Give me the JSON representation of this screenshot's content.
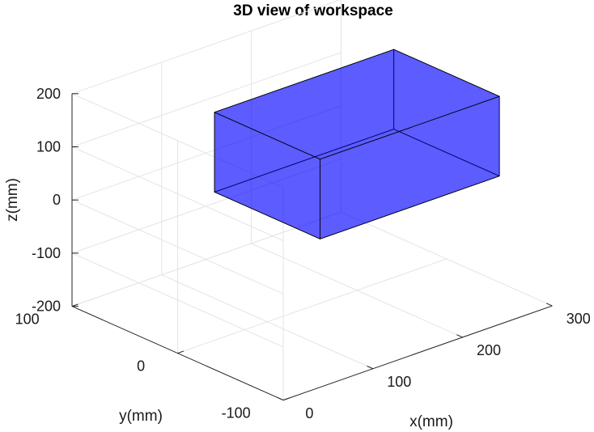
{
  "chart_data": {
    "type": "3d-box",
    "title": "3D view of workspace",
    "xlabel": "x(mm)",
    "ylabel": "y(mm)",
    "zlabel": "z(mm)",
    "xlim": [
      0,
      300
    ],
    "ylim": [
      -100,
      100
    ],
    "zlim": [
      -200,
      200
    ],
    "xticks": [
      0,
      100,
      200,
      300
    ],
    "yticks": [
      -100,
      0,
      100
    ],
    "zticks": [
      -200,
      -100,
      0,
      100,
      200
    ],
    "grid": true,
    "box": {
      "x": [
        100,
        300
      ],
      "y": [
        -50,
        50
      ],
      "z": [
        0,
        150
      ],
      "face_color": "#0000ff",
      "face_alpha": 0.7,
      "edge_color": "#000000"
    }
  }
}
